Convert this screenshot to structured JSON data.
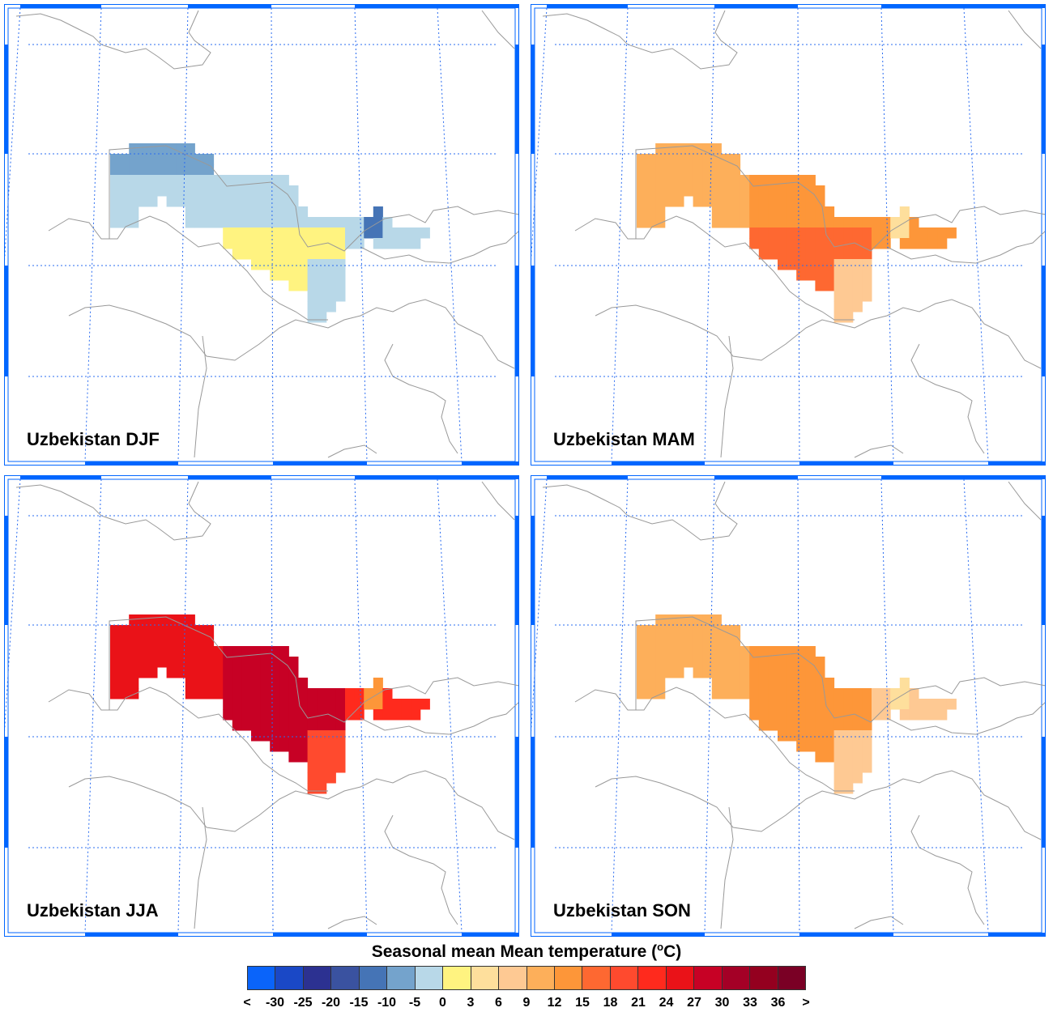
{
  "chart_data": {
    "type": "heatmap",
    "title": "Seasonal mean Mean temperature",
    "units": "°C",
    "colorbar": {
      "labels": [
        "<",
        "-30",
        "-25",
        "-20",
        "-15",
        "-10",
        "-5",
        "0",
        "3",
        "6",
        "9",
        "12",
        "15",
        "18",
        "21",
        "24",
        "27",
        "30",
        "33",
        "36",
        ">"
      ],
      "boundaries": [
        -30,
        -25,
        -20,
        -15,
        -10,
        -5,
        0,
        3,
        6,
        9,
        12,
        15,
        18,
        21,
        24,
        27,
        30,
        33,
        36
      ],
      "colors": [
        "#0a64fa",
        "#1a48c6",
        "#2c3191",
        "#3a52a0",
        "#4574b6",
        "#74a3cc",
        "#b8d8e8",
        "#fff380",
        "#fedf9c",
        "#fec993",
        "#fdaf5a",
        "#fd9639",
        "#fe6831",
        "#ff4a2e",
        "#ff2a1d",
        "#ea1218",
        "#c70125",
        "#a40026",
        "#94001f",
        "#7a0025"
      ]
    },
    "panels": [
      {
        "title": "Uzbekistan DJF",
        "season": "DJF",
        "region_means": {
          "north": -7.5,
          "west": -2.5,
          "central": -2.5,
          "south": 1.5,
          "southeast": -2.5,
          "east": -2.5,
          "mountain": -12.5
        }
      },
      {
        "title": "Uzbekistan MAM",
        "season": "MAM",
        "region_means": {
          "north": 10.5,
          "west": 10.5,
          "central": 13.5,
          "south": 16.5,
          "southeast": 7.5,
          "east": 13.5,
          "mountain": 4.5
        }
      },
      {
        "title": "Uzbekistan JJA",
        "season": "JJA",
        "region_means": {
          "north": 25.5,
          "west": 25.5,
          "central": 28.5,
          "south": 28.5,
          "southeast": 19.5,
          "east": 22.5,
          "mountain": 13.5
        }
      },
      {
        "title": "Uzbekistan SON",
        "season": "SON",
        "region_means": {
          "north": 10.5,
          "west": 10.5,
          "central": 13.5,
          "south": 13.5,
          "southeast": 7.5,
          "east": 7.5,
          "mountain": 4.5
        }
      }
    ]
  },
  "colorbar_title": "Seasonal mean Mean temperature (",
  "colorbar_unit_sup": "o",
  "colorbar_unit": "C)",
  "colors": {
    "frame": "#0066ff",
    "grid": "#2a6cf0",
    "border": "#999999"
  }
}
